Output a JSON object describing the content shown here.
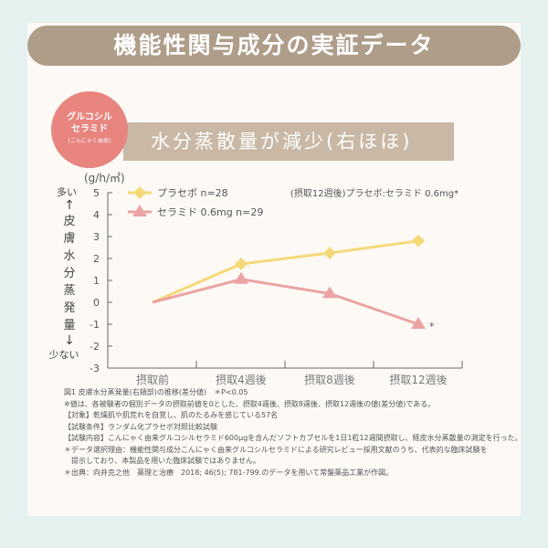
{
  "title": "機能性関与成分の実証データ",
  "badge": {
    "line1": "グルコシル",
    "line2": "セラミド",
    "line3": "(こんにゃく由来)"
  },
  "subtitle": "水分蒸散量が減少(右ほほ)",
  "unit": "(g/h/㎡)",
  "axis_side": {
    "top": "多い",
    "arrow_up": "↑",
    "vertical": [
      "皮",
      "膚",
      "水",
      "分",
      "蒸",
      "発",
      "量"
    ],
    "arrow_down": "↓",
    "bottom": "少ない"
  },
  "annotation": "(摂取12週後)プラセボ:セラミド 0.6mg*",
  "chart_data": {
    "type": "line",
    "categories": [
      "摂取前",
      "摂取4週後",
      "摂取8週後",
      "摂取12週後"
    ],
    "ylim": [
      -3,
      5
    ],
    "yticks": [
      "5",
      "4",
      "3",
      "2",
      "1",
      "0",
      "-1",
      "-2",
      "-3"
    ],
    "legend_position": "top-left",
    "grid": false,
    "series": [
      {
        "name": "プラセボ n=28",
        "values": [
          0,
          1.75,
          2.25,
          2.8
        ],
        "color": "#f5d978",
        "marker": "diamond"
      },
      {
        "name": "セラミド 0.6mg n=29",
        "values": [
          0,
          1.05,
          0.4,
          -1.0
        ],
        "color": "#eba3a3",
        "marker": "triangle"
      }
    ],
    "significance": "*"
  },
  "notes": [
    "図1 皮膚水分蒸発量(右頬部)の推移(差分値)　＊P<0.05",
    "※値は、各被験者の個別データの摂取前値を0とした、摂取4週後、摂取8週後、摂取12週後の値(差分値)である。",
    "【対象】乾燥肌や肌荒れを自覚し、肌のたるみを感じている57名",
    "【試験条件】ランダム化プラセボ対照比較試験",
    "【試験内容】こんにゃく由来グルコシルセラミド600μgを含んだソフトカプセルを1日1粒12週間摂取し、経皮水分蒸散量の測定を行った。",
    "＊データ選択理由：機能性関与成分こんにゃく由来グルコシルセラミドによる研究レビュー採用文献のうち、代表的な臨床試験を",
    "提示しており、本製品を用いた臨床試験ではありません。",
    "＊出典：向井克之他　薬理と治療　2018; 46(5); 781-799.のデータを用いて常盤薬品工業が作図。"
  ]
}
